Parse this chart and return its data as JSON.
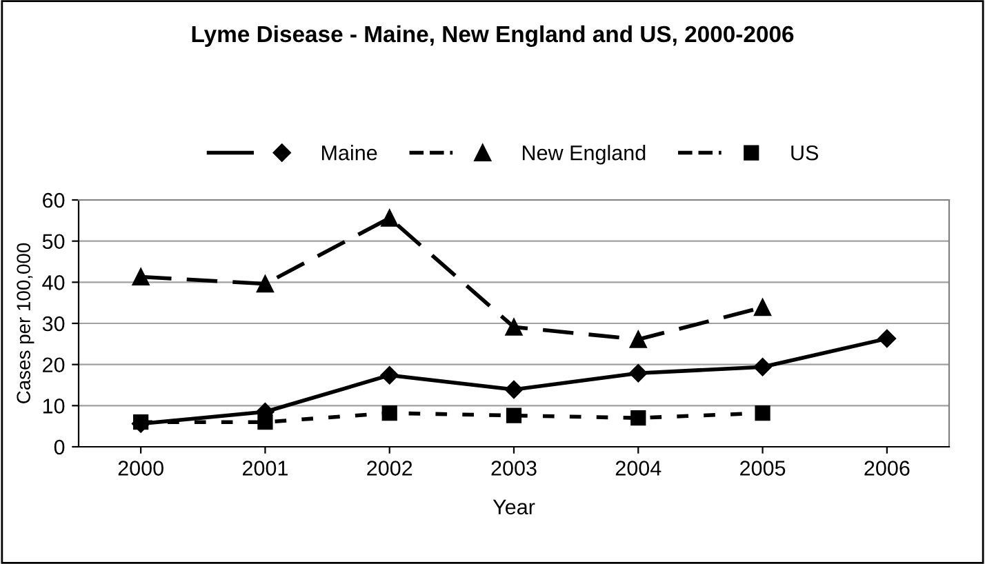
{
  "chart_data": {
    "type": "line",
    "title": "Lyme Disease - Maine, New England and US, 2000-2006",
    "xlabel": "Year",
    "ylabel": "Cases per 100,000",
    "categories": [
      "2000",
      "2001",
      "2002",
      "2003",
      "2004",
      "2005",
      "2006"
    ],
    "series": [
      {
        "name": "Maine",
        "color": "#000000",
        "marker": "diamond",
        "line_style": "solid",
        "values": [
          5.6,
          8.5,
          17.4,
          13.9,
          17.9,
          19.4,
          26.3
        ]
      },
      {
        "name": "New England",
        "color": "#000000",
        "marker": "triangle",
        "line_style": "dashed",
        "values": [
          41.3,
          39.6,
          55.6,
          29.1,
          26.1,
          33.9,
          null
        ]
      },
      {
        "name": "US",
        "color": "#000000",
        "marker": "square",
        "line_style": "dotted",
        "values": [
          6.0,
          6.0,
          8.2,
          7.6,
          7.0,
          8.2,
          null
        ]
      }
    ],
    "ylim": [
      0,
      60
    ],
    "yticks": [
      0,
      10,
      20,
      30,
      40,
      50,
      60
    ],
    "grid": "y",
    "legend": "top"
  }
}
